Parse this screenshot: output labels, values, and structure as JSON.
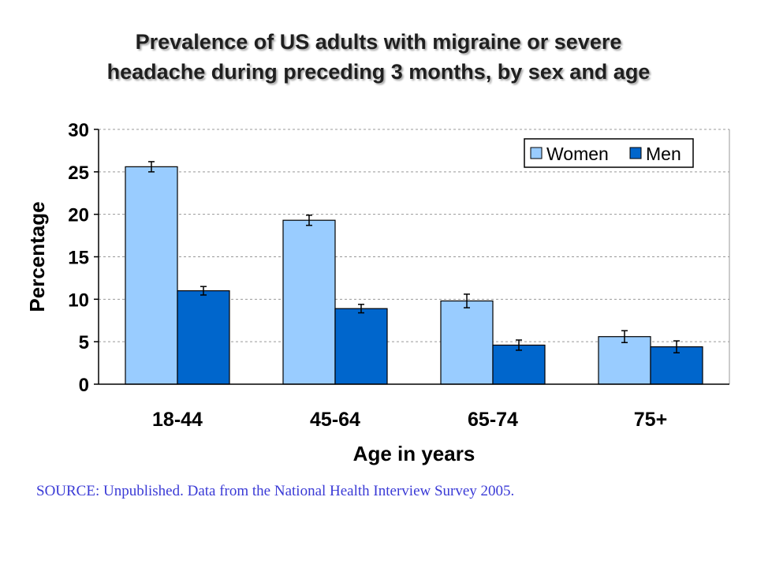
{
  "title_lines": [
    "Prevalence of US adults with migraine or severe",
    "headache during preceding 3 months, by sex and age"
  ],
  "source": "SOURCE: Unpublished. Data from the National Health Interview Survey 2005.",
  "colors": {
    "women": "#99ccff",
    "men": "#0066cc",
    "grid": "#999999",
    "source_text": "#3a3ad6"
  },
  "chart_data": {
    "type": "bar",
    "xlabel": "Age in years",
    "ylabel": "Percentage",
    "ylim": [
      0,
      30
    ],
    "yticks": [
      0,
      5,
      10,
      15,
      20,
      25,
      30
    ],
    "grid": "horizontal dashed",
    "legend_position": "top-right",
    "categories": [
      "18-44",
      "45-64",
      "65-74",
      "75+"
    ],
    "series": [
      {
        "name": "Women",
        "values": [
          25.6,
          19.3,
          9.8,
          5.6
        ],
        "error": [
          0.6,
          0.6,
          0.8,
          0.7
        ]
      },
      {
        "name": "Men",
        "values": [
          11.0,
          8.9,
          4.6,
          4.4
        ],
        "error": [
          0.5,
          0.5,
          0.6,
          0.7
        ]
      }
    ]
  }
}
